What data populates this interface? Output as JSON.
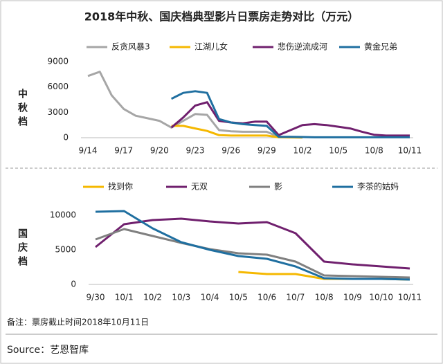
{
  "title": "2018年中秋、国庆档典型影片日票房走势对比（万元）",
  "note": "备注：票房截止时间2018年10月11日",
  "source": "Source：艺恩智库",
  "chart_data": [
    {
      "type": "line",
      "label": "中秋档",
      "categories": [
        "9/14",
        null,
        null,
        "9/17",
        null,
        null,
        "9/20",
        null,
        null,
        "9/23",
        null,
        null,
        "9/26",
        null,
        null,
        "9/29",
        null,
        null,
        "10/2",
        null,
        null,
        "10/5",
        null,
        null,
        "10/8",
        null,
        null,
        "10/11"
      ],
      "ylim": [
        0,
        9000
      ],
      "yticks": [
        0,
        3000,
        6000,
        9000
      ],
      "series": [
        {
          "name": "反贪风暴3",
          "color": "#a6a6a6",
          "values": [
            7300,
            7800,
            5000,
            3400,
            2600,
            2300,
            2000,
            1200,
            2000,
            2800,
            2700,
            900,
            750,
            700,
            700,
            700,
            100,
            50,
            20,
            null,
            null,
            null,
            null,
            null,
            null,
            null,
            null,
            null
          ]
        },
        {
          "name": "江湖儿女",
          "color": "#f5b800",
          "values": [
            null,
            null,
            null,
            null,
            null,
            null,
            null,
            1400,
            1400,
            1100,
            800,
            300,
            250,
            250,
            250,
            250,
            50,
            30,
            20,
            null,
            null,
            null,
            null,
            null,
            null,
            null,
            null,
            null
          ]
        },
        {
          "name": "悲伤逆流成河",
          "color": "#70206e",
          "values": [
            null,
            null,
            null,
            null,
            null,
            null,
            null,
            1200,
            2400,
            3800,
            4200,
            2000,
            1800,
            1700,
            1900,
            1900,
            300,
            900,
            1500,
            1600,
            1500,
            1300,
            1100,
            700,
            350,
            250,
            250,
            250
          ]
        },
        {
          "name": "黄金兄弟",
          "color": "#1f6fa0",
          "values": [
            null,
            null,
            null,
            null,
            null,
            null,
            null,
            4600,
            5300,
            5500,
            5300,
            2200,
            1800,
            1600,
            1500,
            1400,
            100,
            100,
            80,
            50,
            50,
            50,
            50,
            50,
            50,
            50,
            50,
            50
          ]
        }
      ]
    },
    {
      "type": "line",
      "label": "国庆档",
      "categories": [
        "9/30",
        "10/1",
        "10/2",
        "10/3",
        "10/4",
        "10/5",
        "10/6",
        "10/7",
        "10/8",
        "10/9",
        "10/10",
        "10/11"
      ],
      "ylim": [
        0,
        11500
      ],
      "yticks": [
        0,
        5000,
        10000
      ],
      "series": [
        {
          "name": "找到你",
          "color": "#f5b800",
          "values": [
            null,
            null,
            null,
            null,
            null,
            1800,
            1500,
            1500,
            800,
            800,
            800,
            700
          ]
        },
        {
          "name": "无双",
          "color": "#70206e",
          "values": [
            5400,
            8700,
            9300,
            9500,
            9100,
            8800,
            9000,
            7400,
            3300,
            2900,
            2600,
            2300
          ]
        },
        {
          "name": "影",
          "color": "#808080",
          "values": [
            6500,
            8000,
            7000,
            6000,
            5100,
            4500,
            4300,
            3300,
            1300,
            1200,
            1100,
            1000
          ]
        },
        {
          "name": "李茶的姑妈",
          "color": "#1f6fa0",
          "values": [
            10500,
            10600,
            8100,
            6100,
            5000,
            4100,
            3700,
            2600,
            900,
            800,
            800,
            700
          ]
        }
      ]
    }
  ]
}
